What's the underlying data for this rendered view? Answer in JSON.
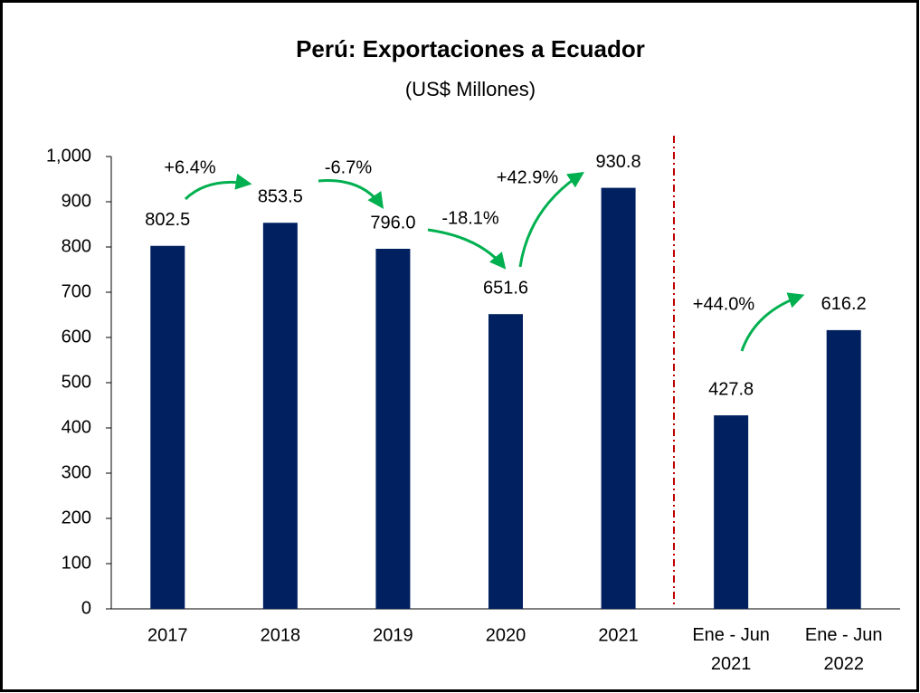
{
  "chart_data": {
    "type": "bar",
    "title": "Perú: Exportaciones a Ecuador",
    "subtitle": "(US$ Millones)",
    "categories": [
      "2017",
      "2018",
      "2019",
      "2020",
      "2021",
      "Ene - Jun 2021",
      "Ene - Jun 2022"
    ],
    "values": [
      802.5,
      853.5,
      796.0,
      651.6,
      930.8,
      427.8,
      616.2
    ],
    "value_labels": [
      "802.5",
      "853.5",
      "796.0",
      "651.6",
      "930.8",
      "427.8",
      "616.2"
    ],
    "color": "#002060",
    "ylim": [
      0,
      1000
    ],
    "yticks": [
      0,
      100,
      200,
      300,
      400,
      500,
      600,
      700,
      800,
      900,
      {
        "value": 1000,
        "label": "1,000"
      }
    ],
    "annotations": [
      "+6.4%",
      "-6.7%",
      "-18.1%",
      "+42.9%",
      "+44.0%"
    ]
  }
}
